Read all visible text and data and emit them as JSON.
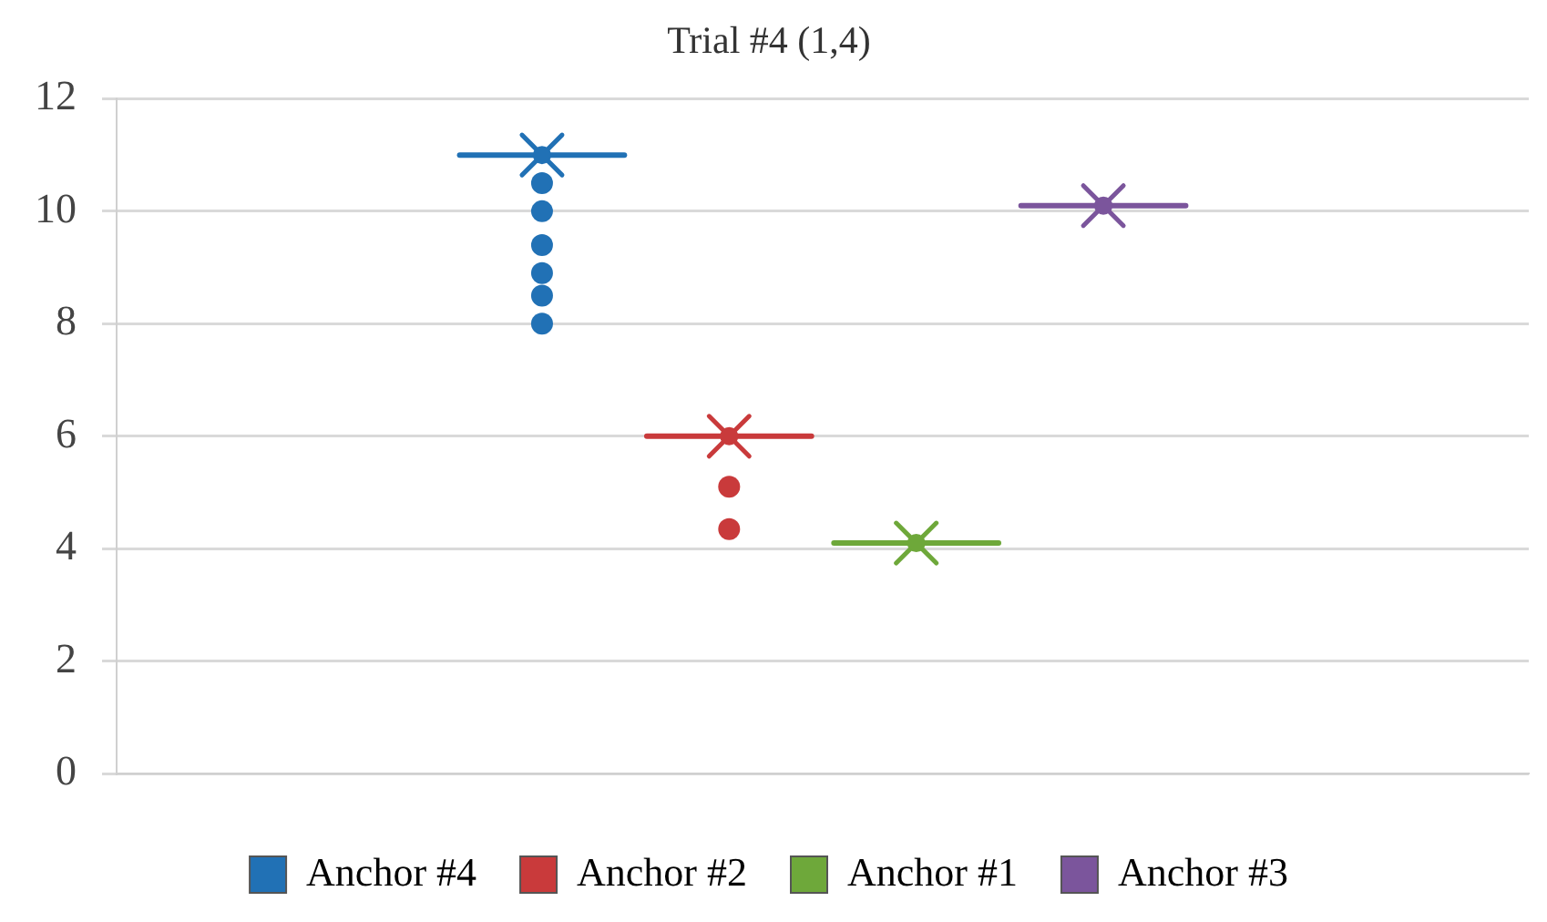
{
  "chart_data": {
    "type": "box",
    "title": "Trial #4 (1,4)",
    "categories": [
      null
    ],
    "series": [
      {
        "name": "Anchor #4",
        "color": "#2171b5",
        "boxes": [
          {
            "low": 11,
            "q1": 11,
            "median": 11,
            "q3": 11,
            "high": 11,
            "mean": 11,
            "outliers": [
              10.5,
              10,
              9.4,
              8.9,
              8.5,
              8
            ]
          }
        ]
      },
      {
        "name": "Anchor #2",
        "color": "#c93a3b",
        "boxes": [
          {
            "low": 6,
            "q1": 6,
            "median": 6,
            "q3": 6,
            "high": 6,
            "mean": 6,
            "outliers": [
              5.1,
              4.35
            ]
          }
        ]
      },
      {
        "name": "Anchor #1",
        "color": "#6ea83a",
        "boxes": [
          {
            "low": 4.1,
            "q1": 4.1,
            "median": 4.1,
            "q3": 4.1,
            "high": 4.1,
            "mean": 4.1
          }
        ]
      },
      {
        "name": "Anchor #3",
        "color": "#7b559c",
        "boxes": [
          {
            "low": 10.1,
            "q1": 10.1,
            "median": 10.1,
            "q3": 10.1,
            "high": 10.1,
            "mean": 10.1
          }
        ]
      }
    ],
    "ylim": [
      0,
      12
    ],
    "yticks": [
      0,
      2,
      4,
      6,
      8,
      10,
      12
    ],
    "grid": "y",
    "legend": "bottom"
  }
}
